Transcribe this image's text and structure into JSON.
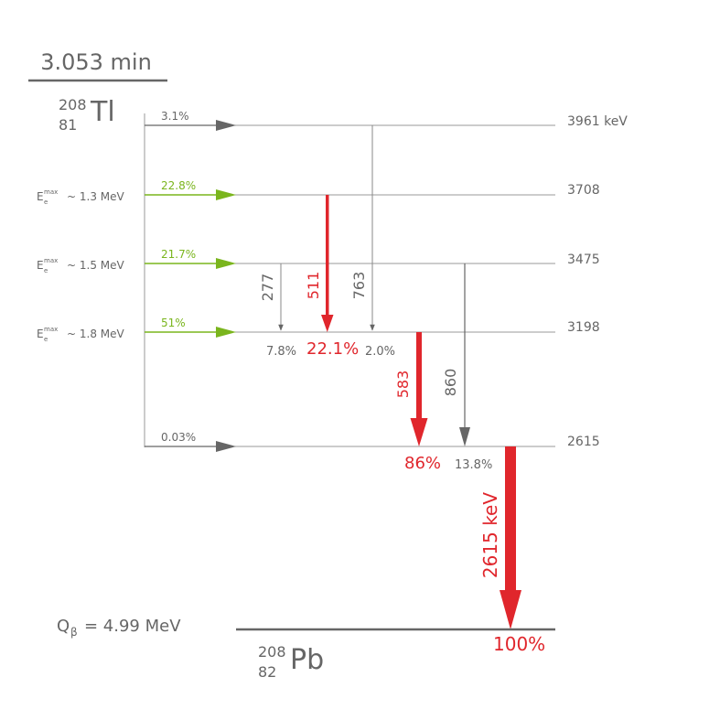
{
  "parent": {
    "half_life": "3.053 min",
    "mass_number": "208",
    "atomic_number": "81",
    "symbol": "Tl"
  },
  "daughter": {
    "mass_number": "208",
    "atomic_number": "82",
    "symbol": "Pb",
    "ground_intensity": "100%"
  },
  "q_value": {
    "label": "Q",
    "subscript": "β",
    "value": "= 4.99 MeV"
  },
  "levels": [
    {
      "energy": "3961 keV",
      "beta_branch": "3.1%",
      "emax": ""
    },
    {
      "energy": "3708",
      "beta_branch": "22.8%",
      "emax": "~ 1.3 MeV"
    },
    {
      "energy": "3475",
      "beta_branch": "21.7%",
      "emax": "~ 1.5 MeV"
    },
    {
      "energy": "3198",
      "beta_branch": "51%",
      "emax": "~ 1.8 MeV"
    },
    {
      "energy": "2615",
      "beta_branch": "0.03%",
      "emax": ""
    }
  ],
  "emax_label": {
    "base": "E",
    "sub": "e",
    "sup": "max"
  },
  "gammas": [
    {
      "energy": "277",
      "intensity": "7.8%"
    },
    {
      "energy": "511",
      "intensity": "22.1%"
    },
    {
      "energy": "763",
      "intensity": "2.0%"
    },
    {
      "energy": "583",
      "intensity": "86%"
    },
    {
      "energy": "860",
      "intensity": "13.8%"
    },
    {
      "energy": "2615 keV",
      "intensity": "100%"
    }
  ],
  "colors": {
    "grey": "#666666",
    "line": "#999999",
    "green": "#7ab51d",
    "red": "#e0262c"
  }
}
